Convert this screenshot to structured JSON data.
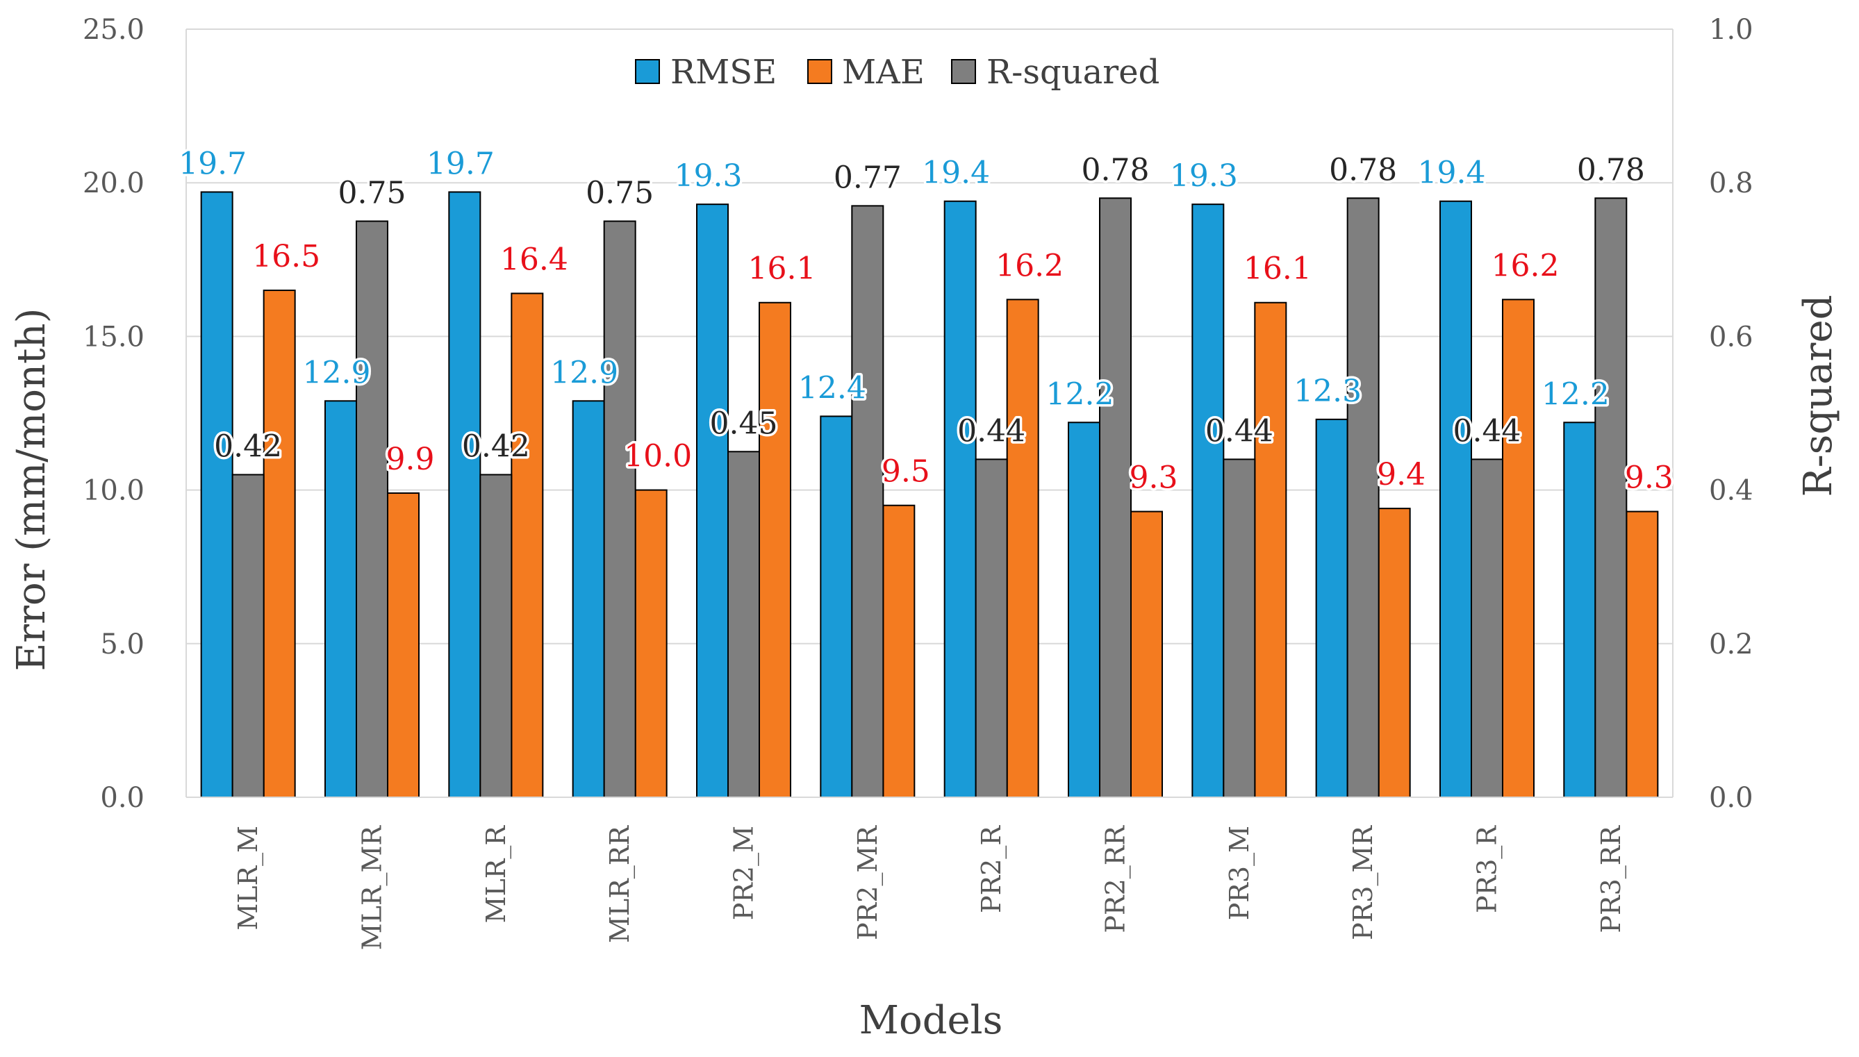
{
  "chart_data": {
    "type": "bar",
    "xlabel": "Models",
    "ylabel": "Error (mm/month)",
    "y2label": "R-squared",
    "ylim": [
      0,
      25
    ],
    "y2lim": [
      0,
      1
    ],
    "yticks": [
      "0.0",
      "5.0",
      "10.0",
      "15.0",
      "20.0",
      "25.0"
    ],
    "y2ticks": [
      "0.0",
      "0.2",
      "0.4",
      "0.6",
      "0.8",
      "1.0"
    ],
    "grid": true,
    "legend_position": "top-center",
    "categories": [
      "MLR_M",
      "MLR_MR",
      "MLR_R",
      "MLR_RR",
      "PR2_M",
      "PR2_MR",
      "PR2_R",
      "PR2_RR",
      "PR3_M",
      "PR3_MR",
      "PR3_R",
      "PR3_RR"
    ],
    "series": [
      {
        "name": "RMSE",
        "axis": "left",
        "color": "#1a9bd7",
        "label_color": "#1a9bd7",
        "values": [
          19.7,
          12.9,
          19.7,
          12.9,
          19.3,
          12.4,
          19.4,
          12.2,
          19.3,
          12.3,
          19.4,
          12.2
        ],
        "labels": [
          "19.7",
          "12.9",
          "19.7",
          "12.9",
          "19.3",
          "12.4",
          "19.4",
          "12.2",
          "19.3",
          "12.3",
          "19.4",
          "12.2"
        ]
      },
      {
        "name": "MAE",
        "axis": "left",
        "color": "#f47b20",
        "label_color": "#e8101a",
        "values": [
          16.5,
          9.9,
          16.4,
          10.0,
          16.1,
          9.5,
          16.2,
          9.3,
          16.1,
          9.4,
          16.2,
          9.3
        ],
        "labels": [
          "16.5",
          "9.9",
          "16.4",
          "10.0",
          "16.1",
          "9.5",
          "16.2",
          "9.3",
          "16.1",
          "9.4",
          "16.2",
          "9.3"
        ]
      },
      {
        "name": "R-squared",
        "axis": "right",
        "color": "#7f7f7f",
        "label_color": "#262626",
        "values": [
          0.42,
          0.75,
          0.42,
          0.75,
          0.45,
          0.77,
          0.44,
          0.78,
          0.44,
          0.78,
          0.44,
          0.78
        ],
        "labels": [
          "0.42",
          "0.75",
          "0.42",
          "0.75",
          "0.45",
          "0.77",
          "0.44",
          "0.78",
          "0.44",
          "0.78",
          "0.44",
          "0.78"
        ]
      }
    ]
  }
}
